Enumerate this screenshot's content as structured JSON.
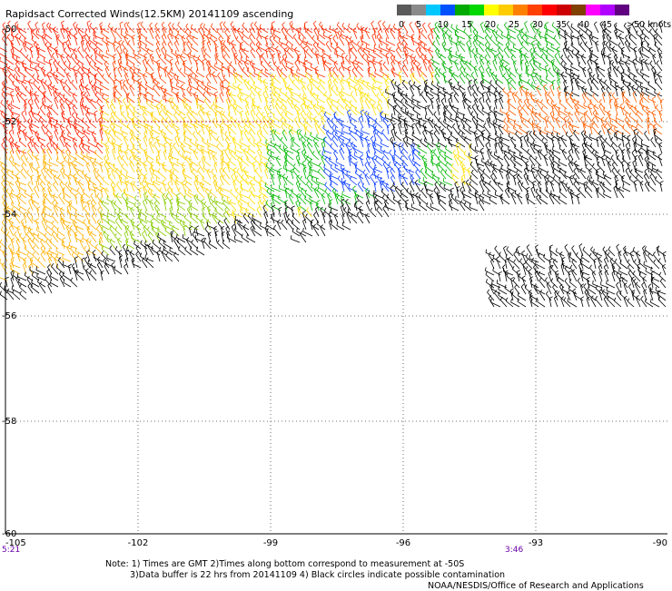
{
  "title": "Rapidsact Corrected Winds(12.5KM) 20141109 ascending",
  "legend": {
    "swatches": [
      "#5a5a5a",
      "#8a8a8a",
      "#00c8ff",
      "#0050ff",
      "#00aa00",
      "#00d800",
      "#ffff00",
      "#ffcc00",
      "#ff8000",
      "#ff4000",
      "#ff0000",
      "#cc0000",
      "#804000",
      "#ff00ff",
      "#b000ff",
      "#600080"
    ],
    "labels": [
      "0",
      "5",
      "10",
      "15",
      "20",
      "25",
      "30",
      "35",
      "40",
      "45",
      ">50 knots"
    ]
  },
  "axes": {
    "x_ticks": [
      "-105",
      "-102",
      "-99",
      "-96",
      "-93",
      "-90"
    ],
    "y_ticks": [
      "-50",
      "-52",
      "-54",
      "-56",
      "-58",
      "-60"
    ]
  },
  "times": {
    "left": "5:21",
    "right": "3:46"
  },
  "notes": {
    "line1": "Note: 1) Times are GMT 2)Times along bottom correspond to measurement at -50S",
    "line2": "3)Data buffer is 22 hrs from 20141109 4) Black circles indicate possible contamination",
    "line3": "NOAA/NESDIS/Office of Research and Applications"
  }
}
